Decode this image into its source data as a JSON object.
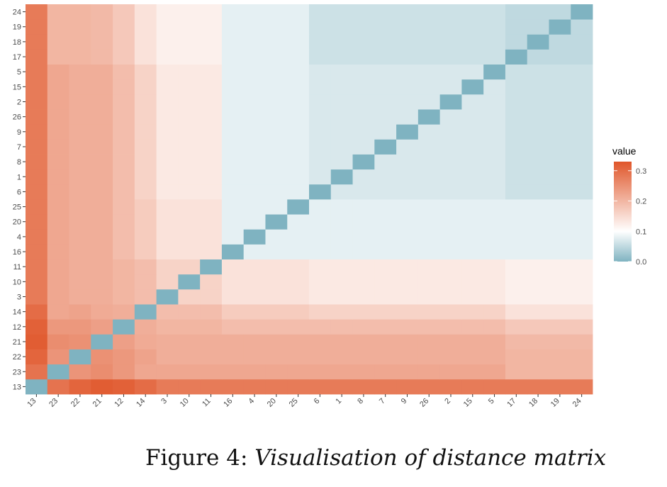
{
  "chart_data": {
    "type": "heatmap",
    "x_categories": [
      "13",
      "23",
      "22",
      "21",
      "12",
      "14",
      "3",
      "10",
      "11",
      "16",
      "4",
      "20",
      "25",
      "6",
      "1",
      "8",
      "7",
      "9",
      "26",
      "2",
      "15",
      "5",
      "17",
      "18",
      "19",
      "24"
    ],
    "y_categories": [
      "13",
      "23",
      "22",
      "21",
      "12",
      "14",
      "3",
      "10",
      "11",
      "16",
      "4",
      "20",
      "25",
      "6",
      "1",
      "8",
      "7",
      "9",
      "26",
      "2",
      "15",
      "5",
      "17",
      "18",
      "19",
      "24"
    ],
    "legend": {
      "title": "value",
      "ticks": [
        0.0,
        0.1,
        0.2,
        0.3
      ],
      "tick_labels": [
        "0.0",
        "0.1",
        "0.2",
        "0.3"
      ],
      "range": [
        0,
        0.33
      ],
      "placement": "right"
    },
    "colors": {
      "low": "#7fb3c1",
      "mid": "#ffffff",
      "high": "#e0562a",
      "panel_bg": "#ebebeb"
    },
    "values_estimated": [
      [
        0.0,
        0.29,
        0.31,
        0.32,
        0.315,
        0.3,
        0.28,
        0.28,
        0.28,
        0.28,
        0.28,
        0.28,
        0.28,
        0.28,
        0.28,
        0.28,
        0.28,
        0.28,
        0.28,
        0.28,
        0.28,
        0.28,
        0.28,
        0.28,
        0.28,
        0.28
      ],
      [
        0.29,
        0.0,
        0.245,
        0.255,
        0.24,
        0.22,
        0.22,
        0.22,
        0.22,
        0.22,
        0.22,
        0.22,
        0.22,
        0.22,
        0.22,
        0.22,
        0.22,
        0.22,
        0.22,
        0.22,
        0.22,
        0.22,
        0.2,
        0.2,
        0.2,
        0.2
      ],
      [
        0.31,
        0.245,
        0.0,
        0.25,
        0.24,
        0.225,
        0.21,
        0.21,
        0.21,
        0.21,
        0.21,
        0.21,
        0.21,
        0.21,
        0.21,
        0.21,
        0.21,
        0.21,
        0.21,
        0.21,
        0.21,
        0.21,
        0.2,
        0.2,
        0.2,
        0.2
      ],
      [
        0.32,
        0.255,
        0.25,
        0.0,
        0.23,
        0.215,
        0.21,
        0.21,
        0.21,
        0.21,
        0.21,
        0.21,
        0.21,
        0.21,
        0.21,
        0.21,
        0.21,
        0.21,
        0.21,
        0.21,
        0.21,
        0.21,
        0.195,
        0.195,
        0.195,
        0.195
      ],
      [
        0.315,
        0.24,
        0.24,
        0.23,
        0.0,
        0.21,
        0.2,
        0.2,
        0.2,
        0.19,
        0.19,
        0.19,
        0.19,
        0.19,
        0.19,
        0.19,
        0.19,
        0.19,
        0.19,
        0.19,
        0.19,
        0.19,
        0.175,
        0.175,
        0.175,
        0.175
      ],
      [
        0.3,
        0.22,
        0.225,
        0.215,
        0.21,
        0.0,
        0.19,
        0.19,
        0.19,
        0.17,
        0.17,
        0.17,
        0.17,
        0.16,
        0.16,
        0.16,
        0.16,
        0.16,
        0.16,
        0.16,
        0.16,
        0.16,
        0.14,
        0.14,
        0.14,
        0.14
      ],
      [
        0.28,
        0.22,
        0.21,
        0.21,
        0.2,
        0.19,
        0.0,
        0.16,
        0.16,
        0.14,
        0.14,
        0.14,
        0.14,
        0.13,
        0.13,
        0.13,
        0.13,
        0.13,
        0.13,
        0.13,
        0.13,
        0.13,
        0.12,
        0.12,
        0.12,
        0.12
      ],
      [
        0.28,
        0.22,
        0.21,
        0.21,
        0.2,
        0.19,
        0.16,
        0.0,
        0.16,
        0.14,
        0.14,
        0.14,
        0.14,
        0.13,
        0.13,
        0.13,
        0.13,
        0.13,
        0.13,
        0.13,
        0.13,
        0.13,
        0.12,
        0.12,
        0.12,
        0.12
      ],
      [
        0.28,
        0.22,
        0.21,
        0.21,
        0.2,
        0.19,
        0.16,
        0.16,
        0.0,
        0.14,
        0.14,
        0.14,
        0.14,
        0.13,
        0.13,
        0.13,
        0.13,
        0.13,
        0.13,
        0.13,
        0.13,
        0.13,
        0.12,
        0.12,
        0.12,
        0.12
      ],
      [
        0.28,
        0.22,
        0.21,
        0.21,
        0.19,
        0.17,
        0.14,
        0.14,
        0.14,
        0.0,
        0.08,
        0.08,
        0.08,
        0.08,
        0.08,
        0.08,
        0.08,
        0.08,
        0.08,
        0.08,
        0.08,
        0.08,
        0.08,
        0.08,
        0.08,
        0.08
      ],
      [
        0.28,
        0.22,
        0.21,
        0.21,
        0.19,
        0.17,
        0.14,
        0.14,
        0.14,
        0.08,
        0.0,
        0.08,
        0.08,
        0.08,
        0.08,
        0.08,
        0.08,
        0.08,
        0.08,
        0.08,
        0.08,
        0.08,
        0.08,
        0.08,
        0.08,
        0.08
      ],
      [
        0.28,
        0.22,
        0.21,
        0.21,
        0.19,
        0.17,
        0.14,
        0.14,
        0.14,
        0.08,
        0.08,
        0.0,
        0.08,
        0.08,
        0.08,
        0.08,
        0.08,
        0.08,
        0.08,
        0.08,
        0.08,
        0.08,
        0.08,
        0.08,
        0.08,
        0.08
      ],
      [
        0.28,
        0.22,
        0.21,
        0.21,
        0.19,
        0.17,
        0.14,
        0.14,
        0.14,
        0.08,
        0.08,
        0.08,
        0.0,
        0.08,
        0.08,
        0.08,
        0.08,
        0.08,
        0.08,
        0.08,
        0.08,
        0.08,
        0.08,
        0.08,
        0.08,
        0.08
      ],
      [
        0.28,
        0.22,
        0.21,
        0.21,
        0.19,
        0.16,
        0.13,
        0.13,
        0.13,
        0.08,
        0.08,
        0.08,
        0.08,
        0.0,
        0.07,
        0.07,
        0.07,
        0.07,
        0.07,
        0.07,
        0.07,
        0.07,
        0.06,
        0.06,
        0.06,
        0.06
      ],
      [
        0.28,
        0.22,
        0.21,
        0.21,
        0.19,
        0.16,
        0.13,
        0.13,
        0.13,
        0.08,
        0.08,
        0.08,
        0.08,
        0.07,
        0.0,
        0.07,
        0.07,
        0.07,
        0.07,
        0.07,
        0.07,
        0.07,
        0.06,
        0.06,
        0.06,
        0.06
      ],
      [
        0.28,
        0.22,
        0.21,
        0.21,
        0.19,
        0.16,
        0.13,
        0.13,
        0.13,
        0.08,
        0.08,
        0.08,
        0.08,
        0.07,
        0.07,
        0.0,
        0.07,
        0.07,
        0.07,
        0.07,
        0.07,
        0.07,
        0.06,
        0.06,
        0.06,
        0.06
      ],
      [
        0.28,
        0.22,
        0.21,
        0.21,
        0.19,
        0.16,
        0.13,
        0.13,
        0.13,
        0.08,
        0.08,
        0.08,
        0.08,
        0.07,
        0.07,
        0.07,
        0.0,
        0.07,
        0.07,
        0.07,
        0.07,
        0.07,
        0.06,
        0.06,
        0.06,
        0.06
      ],
      [
        0.28,
        0.22,
        0.21,
        0.21,
        0.19,
        0.16,
        0.13,
        0.13,
        0.13,
        0.08,
        0.08,
        0.08,
        0.08,
        0.07,
        0.07,
        0.07,
        0.07,
        0.0,
        0.07,
        0.07,
        0.07,
        0.07,
        0.06,
        0.06,
        0.06,
        0.06
      ],
      [
        0.28,
        0.22,
        0.21,
        0.21,
        0.19,
        0.16,
        0.13,
        0.13,
        0.13,
        0.08,
        0.08,
        0.08,
        0.08,
        0.07,
        0.07,
        0.07,
        0.07,
        0.07,
        0.0,
        0.07,
        0.07,
        0.07,
        0.06,
        0.06,
        0.06,
        0.06
      ],
      [
        0.28,
        0.22,
        0.21,
        0.21,
        0.19,
        0.16,
        0.13,
        0.13,
        0.13,
        0.08,
        0.08,
        0.08,
        0.08,
        0.07,
        0.07,
        0.07,
        0.07,
        0.07,
        0.07,
        0.0,
        0.07,
        0.07,
        0.06,
        0.06,
        0.06,
        0.06
      ],
      [
        0.28,
        0.22,
        0.21,
        0.21,
        0.19,
        0.16,
        0.13,
        0.13,
        0.13,
        0.08,
        0.08,
        0.08,
        0.08,
        0.07,
        0.07,
        0.07,
        0.07,
        0.07,
        0.07,
        0.07,
        0.0,
        0.07,
        0.06,
        0.06,
        0.06,
        0.06
      ],
      [
        0.28,
        0.22,
        0.21,
        0.21,
        0.19,
        0.16,
        0.13,
        0.13,
        0.13,
        0.08,
        0.08,
        0.08,
        0.08,
        0.07,
        0.07,
        0.07,
        0.07,
        0.07,
        0.07,
        0.07,
        0.07,
        0.0,
        0.06,
        0.06,
        0.06,
        0.06
      ],
      [
        0.28,
        0.2,
        0.2,
        0.195,
        0.175,
        0.14,
        0.12,
        0.12,
        0.12,
        0.08,
        0.08,
        0.08,
        0.08,
        0.06,
        0.06,
        0.06,
        0.06,
        0.06,
        0.06,
        0.06,
        0.06,
        0.06,
        0.0,
        0.05,
        0.05,
        0.05
      ],
      [
        0.28,
        0.2,
        0.2,
        0.195,
        0.175,
        0.14,
        0.12,
        0.12,
        0.12,
        0.08,
        0.08,
        0.08,
        0.08,
        0.06,
        0.06,
        0.06,
        0.06,
        0.06,
        0.06,
        0.06,
        0.06,
        0.06,
        0.05,
        0.0,
        0.05,
        0.05
      ],
      [
        0.28,
        0.2,
        0.2,
        0.195,
        0.175,
        0.14,
        0.12,
        0.12,
        0.12,
        0.08,
        0.08,
        0.08,
        0.08,
        0.06,
        0.06,
        0.06,
        0.06,
        0.06,
        0.06,
        0.06,
        0.06,
        0.06,
        0.05,
        0.05,
        0.0,
        0.05
      ],
      [
        0.28,
        0.2,
        0.2,
        0.195,
        0.175,
        0.14,
        0.12,
        0.12,
        0.12,
        0.08,
        0.08,
        0.08,
        0.08,
        0.06,
        0.06,
        0.06,
        0.06,
        0.06,
        0.06,
        0.06,
        0.06,
        0.06,
        0.05,
        0.05,
        0.05,
        0.0
      ]
    ]
  },
  "caption": {
    "label": "Figure 4:",
    "text": "Visualisation of distance matrix"
  }
}
